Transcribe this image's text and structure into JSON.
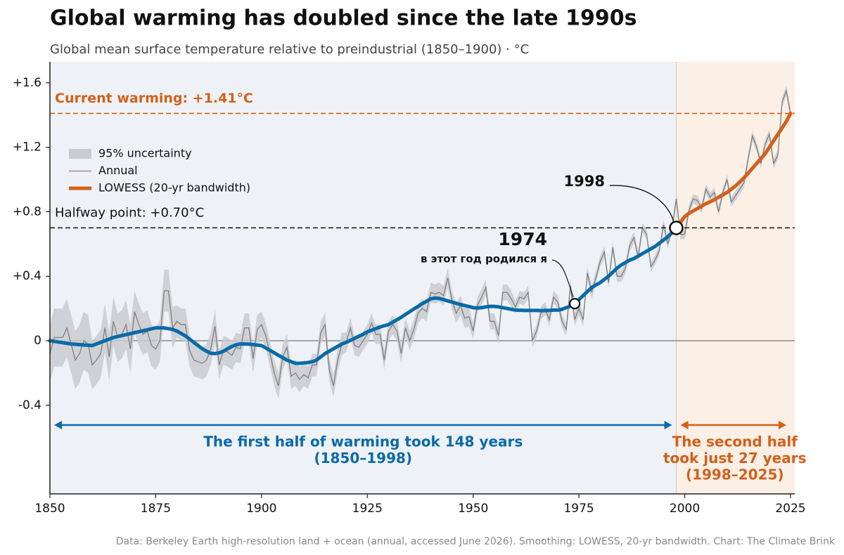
{
  "chart_data": {
    "type": "line",
    "title": "Global warming has doubled since the late 1990s",
    "subtitle": "Global mean surface temperature relative to preindustrial (1850–1900)  ·  °C",
    "source": "Data: Berkeley Earth high-resolution land + ocean (annual, accessed June 2026). Smoothing: LOWESS, 20-yr bandwidth. Chart: The Climate Brink",
    "xlim": [
      1850,
      2026
    ],
    "ylim": [
      -0.95,
      1.73
    ],
    "xticks": [
      1850,
      1875,
      1900,
      1925,
      1950,
      1975,
      2000,
      2025
    ],
    "yticks": [
      {
        "value": 1.6,
        "label": "+1.6"
      },
      {
        "value": 1.2,
        "label": "+1.2"
      },
      {
        "value": 0.8,
        "label": "+0.8"
      },
      {
        "value": 0.4,
        "label": "+0.4"
      },
      0,
      -0.4
    ],
    "legend": "upper left",
    "x": [
      1850,
      1851,
      1852,
      1853,
      1854,
      1855,
      1856,
      1857,
      1858,
      1859,
      1860,
      1861,
      1862,
      1863,
      1864,
      1865,
      1866,
      1867,
      1868,
      1869,
      1870,
      1871,
      1872,
      1873,
      1874,
      1875,
      1876,
      1877,
      1878,
      1879,
      1880,
      1881,
      1882,
      1883,
      1884,
      1885,
      1886,
      1887,
      1888,
      1889,
      1890,
      1891,
      1892,
      1893,
      1894,
      1895,
      1896,
      1897,
      1898,
      1899,
      1900,
      1901,
      1902,
      1903,
      1904,
      1905,
      1906,
      1907,
      1908,
      1909,
      1910,
      1911,
      1912,
      1913,
      1914,
      1915,
      1916,
      1917,
      1918,
      1919,
      1920,
      1921,
      1922,
      1923,
      1924,
      1925,
      1926,
      1927,
      1928,
      1929,
      1930,
      1931,
      1932,
      1933,
      1934,
      1935,
      1936,
      1937,
      1938,
      1939,
      1940,
      1941,
      1942,
      1943,
      1944,
      1945,
      1946,
      1947,
      1948,
      1949,
      1950,
      1951,
      1952,
      1953,
      1954,
      1955,
      1956,
      1957,
      1958,
      1959,
      1960,
      1961,
      1962,
      1963,
      1964,
      1965,
      1966,
      1967,
      1968,
      1969,
      1970,
      1971,
      1972,
      1973,
      1974,
      1975,
      1976,
      1977,
      1978,
      1979,
      1980,
      1981,
      1982,
      1983,
      1984,
      1985,
      1986,
      1987,
      1988,
      1989,
      1990,
      1991,
      1992,
      1993,
      1994,
      1995,
      1996,
      1997,
      1998,
      1999,
      2000,
      2001,
      2002,
      2003,
      2004,
      2005,
      2006,
      2007,
      2008,
      2009,
      2010,
      2011,
      2012,
      2013,
      2014,
      2015,
      2016,
      2017,
      2018,
      2019,
      2020,
      2021,
      2022,
      2023,
      2024,
      2025
    ],
    "series": [
      {
        "name": "95% uncertainty",
        "kind": "band",
        "color": "#c8cbcf",
        "values": [
          0.18,
          0.18,
          0.18,
          0.18,
          0.18,
          0.18,
          0.18,
          0.18,
          0.18,
          0.18,
          0.15,
          0.15,
          0.15,
          0.15,
          0.15,
          0.15,
          0.15,
          0.15,
          0.15,
          0.15,
          0.13,
          0.13,
          0.13,
          0.13,
          0.13,
          0.13,
          0.13,
          0.13,
          0.13,
          0.13,
          0.1,
          0.1,
          0.1,
          0.1,
          0.1,
          0.1,
          0.1,
          0.1,
          0.1,
          0.1,
          0.09,
          0.09,
          0.09,
          0.09,
          0.09,
          0.09,
          0.09,
          0.09,
          0.09,
          0.09,
          0.08,
          0.08,
          0.08,
          0.08,
          0.08,
          0.08,
          0.08,
          0.08,
          0.08,
          0.08,
          0.07,
          0.07,
          0.07,
          0.07,
          0.07,
          0.07,
          0.07,
          0.07,
          0.07,
          0.07,
          0.06,
          0.06,
          0.06,
          0.06,
          0.06,
          0.06,
          0.06,
          0.06,
          0.06,
          0.06,
          0.06,
          0.06,
          0.06,
          0.06,
          0.06,
          0.06,
          0.06,
          0.06,
          0.06,
          0.06,
          0.06,
          0.06,
          0.06,
          0.06,
          0.06,
          0.06,
          0.06,
          0.06,
          0.06,
          0.06,
          0.05,
          0.05,
          0.05,
          0.05,
          0.05,
          0.05,
          0.05,
          0.05,
          0.05,
          0.05,
          0.04,
          0.04,
          0.04,
          0.04,
          0.04,
          0.04,
          0.04,
          0.04,
          0.04,
          0.04,
          0.04,
          0.04,
          0.04,
          0.04,
          0.04,
          0.04,
          0.04,
          0.04,
          0.04,
          0.04,
          0.035,
          0.035,
          0.035,
          0.035,
          0.035,
          0.035,
          0.035,
          0.035,
          0.035,
          0.035,
          0.03,
          0.03,
          0.03,
          0.03,
          0.03,
          0.03,
          0.03,
          0.03,
          0.03,
          0.03,
          0.03,
          0.03,
          0.03,
          0.03,
          0.03,
          0.03,
          0.03,
          0.03,
          0.03,
          0.03,
          0.03,
          0.03,
          0.03,
          0.03,
          0.03,
          0.03,
          0.03,
          0.03,
          0.03,
          0.03,
          0.03,
          0.03,
          0.03,
          0.03,
          0.03,
          0.03
        ]
      },
      {
        "name": "Annual",
        "kind": "line",
        "color": "#808080",
        "values": [
          -0.08,
          0.02,
          0.02,
          0.02,
          0.08,
          -0.02,
          -0.12,
          -0.08,
          0.0,
          -0.02,
          -0.15,
          -0.12,
          -0.08,
          0.08,
          -0.1,
          0.12,
          0.02,
          0.04,
          0.1,
          -0.05,
          0.18,
          0.1,
          0.04,
          0.06,
          -0.03,
          -0.05,
          0.0,
          0.31,
          0.31,
          0.08,
          0.12,
          0.1,
          0.1,
          -0.06,
          -0.12,
          -0.13,
          -0.14,
          -0.12,
          -0.05,
          0.09,
          -0.15,
          -0.06,
          -0.07,
          -0.09,
          -0.04,
          -0.05,
          0.08,
          0.08,
          -0.11,
          0.07,
          0.1,
          0.03,
          -0.08,
          -0.2,
          -0.28,
          -0.1,
          -0.04,
          -0.22,
          -0.2,
          -0.24,
          -0.21,
          -0.23,
          -0.15,
          -0.15,
          0.05,
          0.1,
          -0.18,
          -0.28,
          -0.12,
          -0.02,
          -0.01,
          0.08,
          -0.03,
          -0.04,
          0.0,
          0.04,
          0.11,
          0.04,
          0.04,
          -0.12,
          0.06,
          0.1,
          0.06,
          -0.08,
          0.08,
          0.0,
          0.07,
          0.17,
          0.2,
          0.18,
          0.3,
          0.29,
          0.3,
          0.28,
          0.39,
          0.25,
          0.17,
          0.22,
          0.14,
          0.15,
          0.06,
          0.22,
          0.27,
          0.33,
          0.12,
          0.12,
          0.03,
          0.3,
          0.3,
          0.26,
          0.21,
          0.27,
          0.26,
          0.3,
          0.0,
          0.06,
          0.17,
          0.2,
          0.13,
          0.27,
          0.24,
          0.12,
          0.07,
          0.34,
          0.13,
          0.2,
          0.13,
          0.42,
          0.3,
          0.39,
          0.49,
          0.55,
          0.36,
          0.58,
          0.4,
          0.4,
          0.45,
          0.59,
          0.64,
          0.52,
          0.7,
          0.66,
          0.46,
          0.5,
          0.56,
          0.72,
          0.6,
          0.7,
          0.88,
          0.66,
          0.66,
          0.81,
          0.88,
          0.87,
          0.82,
          0.94,
          0.89,
          0.92,
          0.8,
          0.92,
          1.0,
          0.86,
          0.9,
          0.94,
          0.98,
          1.13,
          1.27,
          1.2,
          1.1,
          1.22,
          1.28,
          1.1,
          1.15,
          1.48,
          1.55,
          1.41
        ]
      },
      {
        "name": "LOWESS (20-yr bandwidth)",
        "kind": "smooth",
        "color": "#d2601a",
        "early_color": "#0a6aa8",
        "values": [
          0.0,
          -0.004,
          -0.008,
          -0.012,
          -0.016,
          -0.02,
          -0.022,
          -0.024,
          -0.026,
          -0.028,
          -0.03,
          -0.02,
          -0.01,
          0.0,
          0.01,
          0.02,
          0.026,
          0.032,
          0.038,
          0.044,
          0.05,
          0.056,
          0.062,
          0.068,
          0.074,
          0.08,
          0.08,
          0.079,
          0.075,
          0.07,
          0.06,
          0.045,
          0.03,
          0.01,
          -0.01,
          -0.03,
          -0.05,
          -0.065,
          -0.078,
          -0.08,
          -0.075,
          -0.065,
          -0.05,
          -0.035,
          -0.025,
          -0.02,
          -0.02,
          -0.021,
          -0.024,
          -0.027,
          -0.03,
          -0.045,
          -0.06,
          -0.075,
          -0.09,
          -0.105,
          -0.12,
          -0.13,
          -0.14,
          -0.14,
          -0.138,
          -0.135,
          -0.13,
          -0.12,
          -0.1,
          -0.08,
          -0.065,
          -0.05,
          -0.035,
          -0.02,
          -0.01,
          0.002,
          0.015,
          0.028,
          0.04,
          0.055,
          0.065,
          0.075,
          0.085,
          0.093,
          0.1,
          0.115,
          0.13,
          0.145,
          0.163,
          0.18,
          0.197,
          0.213,
          0.23,
          0.245,
          0.26,
          0.265,
          0.262,
          0.255,
          0.247,
          0.24,
          0.232,
          0.225,
          0.218,
          0.212,
          0.205,
          0.203,
          0.205,
          0.21,
          0.213,
          0.213,
          0.21,
          0.205,
          0.2,
          0.195,
          0.19,
          0.189,
          0.188,
          0.188,
          0.188,
          0.188,
          0.187,
          0.187,
          0.188,
          0.19,
          0.19,
          0.195,
          0.205,
          0.215,
          0.23,
          0.255,
          0.28,
          0.305,
          0.33,
          0.345,
          0.36,
          0.38,
          0.4,
          0.425,
          0.45,
          0.47,
          0.485,
          0.5,
          0.51,
          0.525,
          0.54,
          0.555,
          0.57,
          0.585,
          0.605,
          0.625,
          0.645,
          0.67,
          0.7,
          0.735,
          0.77,
          0.79,
          0.805,
          0.82,
          0.835,
          0.85,
          0.862,
          0.875,
          0.89,
          0.905,
          0.92,
          0.94,
          0.96,
          0.985,
          1.01,
          1.04,
          1.07,
          1.1,
          1.13,
          1.16,
          1.2,
          1.24,
          1.28,
          1.32,
          1.36,
          1.41
        ]
      }
    ],
    "current_warming": {
      "label": "Current warming: +1.41°C",
      "value": 1.41,
      "color": "#d2601a"
    },
    "halfway": {
      "label": "Halfway point: +0.70°C",
      "value": 0.7,
      "year": 1998
    },
    "birth": {
      "year": 1974,
      "value": 0.23,
      "note": "в этот год родился я"
    },
    "periods": [
      {
        "start": 1850,
        "end": 1998,
        "color": "#0a6aa8",
        "shade": "#eef2f6",
        "lines": [
          "The first half of warming took 148 years",
          "(1850–1998)"
        ]
      },
      {
        "start": 1998,
        "end": 2025,
        "color": "#d2601a",
        "shade": "#fbefe6",
        "lines": [
          "The second half",
          "took just 27 years",
          "(1998–2025)"
        ]
      }
    ]
  }
}
